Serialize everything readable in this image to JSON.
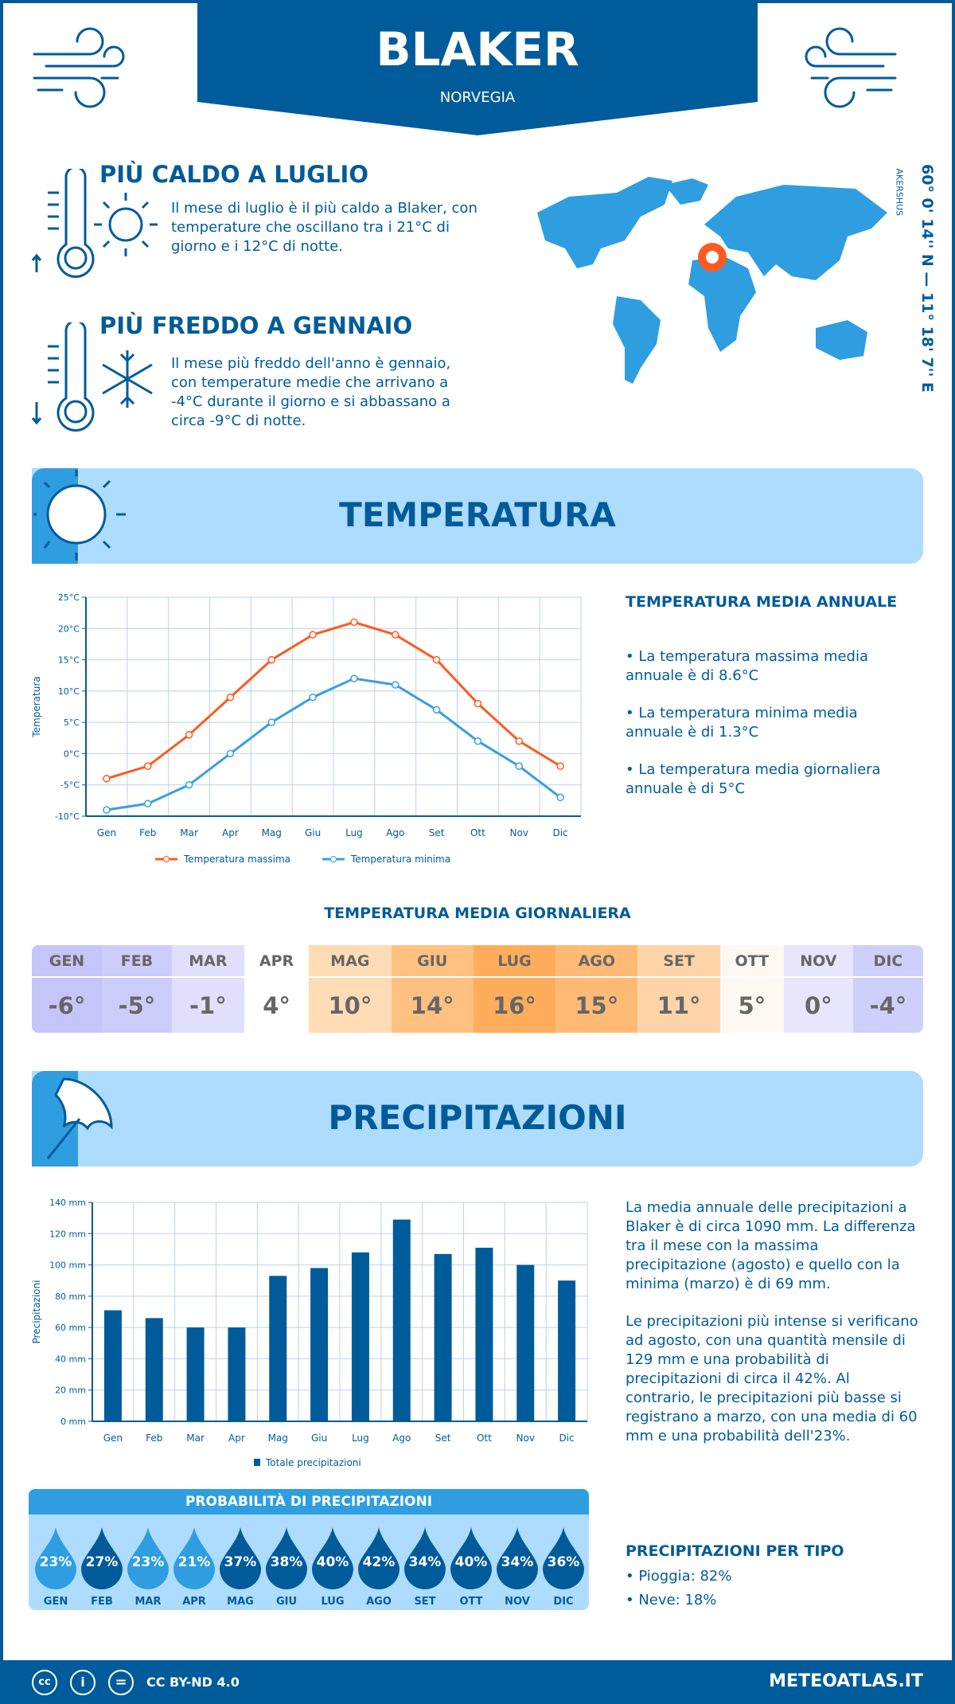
{
  "header": {
    "city": "BLAKER",
    "country": "NORVEGIA"
  },
  "warmest": {
    "title": "PIÙ CALDO A LUGLIO",
    "text": "Il mese di luglio è il più caldo a Blaker, con temperature che oscillano tra i 21°C di giorno e i 12°C di notte."
  },
  "coldest": {
    "title": "PIÙ FREDDO A GENNAIO",
    "text": "Il mese più freddo dell'anno è gennaio, con temperature medie che arrivano a -4°C durante il giorno e si abbassano a circa -9°C di notte."
  },
  "location": {
    "coords": "60° 0' 14'' N — 11° 18' 7'' E",
    "region": "AKERSHUS"
  },
  "colors": {
    "primary": "#005b9a",
    "accent": "#2e9ee0",
    "light": "#aedcff",
    "max": "#ff5a1f",
    "min": "#3a9fe0"
  },
  "temp_section": {
    "title": "TEMPERATURA",
    "annual_title": "TEMPERATURA MEDIA ANNUALE",
    "bullets": [
      "• La temperatura massima media annuale è di 8.6°C",
      "• La temperatura minima media annuale è di 1.3°C",
      "• La temperatura media giornaliera annuale è di 5°C"
    ],
    "daily_title": "TEMPERATURA MEDIA GIORNALIERA"
  },
  "daily": {
    "months": [
      "GEN",
      "FEB",
      "MAR",
      "APR",
      "MAG",
      "GIU",
      "LUG",
      "AGO",
      "SET",
      "OTT",
      "NOV",
      "DIC"
    ],
    "values": [
      "-6°",
      "-5°",
      "-1°",
      "4°",
      "10°",
      "14°",
      "16°",
      "15°",
      "11°",
      "5°",
      "0°",
      "-4°"
    ],
    "head_colors": [
      "#c5c5fa",
      "#cdcdfb",
      "#e0e0fd",
      "#ffffff",
      "#ffdcb5",
      "#ffc080",
      "#ffad5c",
      "#ffbb75",
      "#ffd4a8",
      "#fdf8f2",
      "#e6e6fd",
      "#cfcffb"
    ],
    "val_colors": [
      "#c5c5fa",
      "#cdcdfb",
      "#e0e0fd",
      "#ffffff",
      "#ffdcb5",
      "#ffc080",
      "#ffad5c",
      "#ffbb75",
      "#ffd4a8",
      "#fdf8f2",
      "#e6e6fd",
      "#cfcffb"
    ]
  },
  "precip_section": {
    "title": "PRECIPITAZIONI",
    "p1": "La media annuale delle precipitazioni a Blaker è di circa 1090 mm. La differenza tra il mese con la massima precipitazione (agosto) e quello con la minima (marzo) è di 69 mm.",
    "p2": "Le precipitazioni più intense si verificano ad agosto, con una quantità mensile di 129 mm e una probabilità di precipitazioni di circa il 42%. Al contrario, le precipitazioni più basse si registrano a marzo, con una media di 60 mm e una probabilità dell'23%.",
    "prob_title": "PROBABILITÀ DI PRECIPITAZIONI",
    "prob": [
      23,
      27,
      23,
      21,
      37,
      38,
      40,
      42,
      34,
      40,
      34,
      36
    ],
    "prob_labels": [
      "23%",
      "27%",
      "23%",
      "21%",
      "37%",
      "38%",
      "40%",
      "42%",
      "34%",
      "40%",
      "34%",
      "36%"
    ],
    "type_title": "PRECIPITAZIONI PER TIPO",
    "types": [
      "• Pioggia: 82%",
      "• Neve: 18%"
    ]
  },
  "chart_data": [
    {
      "type": "line",
      "title": "",
      "xlabel": "",
      "ylabel": "Temperatura",
      "categories": [
        "Gen",
        "Feb",
        "Mar",
        "Apr",
        "Mag",
        "Giu",
        "Lug",
        "Ago",
        "Set",
        "Ott",
        "Nov",
        "Dic"
      ],
      "series": [
        {
          "name": "Temperatura massima",
          "values": [
            -4,
            -2,
            3,
            9,
            15,
            19,
            21,
            19,
            15,
            8,
            2,
            -2
          ]
        },
        {
          "name": "Temperatura minima",
          "values": [
            -9,
            -8,
            -5,
            0,
            5,
            9,
            12,
            11,
            7,
            2,
            -2,
            -7
          ]
        }
      ],
      "ylim": [
        -10,
        25
      ],
      "yticks": [
        "25°C",
        "20°C",
        "15°C",
        "10°C",
        "5°C",
        "0°C",
        "-5°C",
        "-10°C"
      ],
      "grid": true,
      "legend": "bottom"
    },
    {
      "type": "bar",
      "title": "",
      "xlabel": "",
      "ylabel": "Precipitazioni",
      "categories": [
        "Gen",
        "Feb",
        "Mar",
        "Apr",
        "Mag",
        "Giu",
        "Lug",
        "Ago",
        "Set",
        "Ott",
        "Nov",
        "Dic"
      ],
      "series": [
        {
          "name": "Totale precipitazioni",
          "values": [
            71,
            66,
            60,
            60,
            93,
            98,
            108,
            129,
            107,
            111,
            100,
            90
          ]
        }
      ],
      "ylim": [
        0,
        140
      ],
      "yticks": [
        "140 mm",
        "120 mm",
        "100 mm",
        "80 mm",
        "60 mm",
        "40 mm",
        "20 mm",
        "0 mm"
      ],
      "grid": true,
      "legend": "bottom"
    }
  ],
  "footer": {
    "license": "CC BY-ND 4.0",
    "brand": "METEOATLAS.IT"
  }
}
